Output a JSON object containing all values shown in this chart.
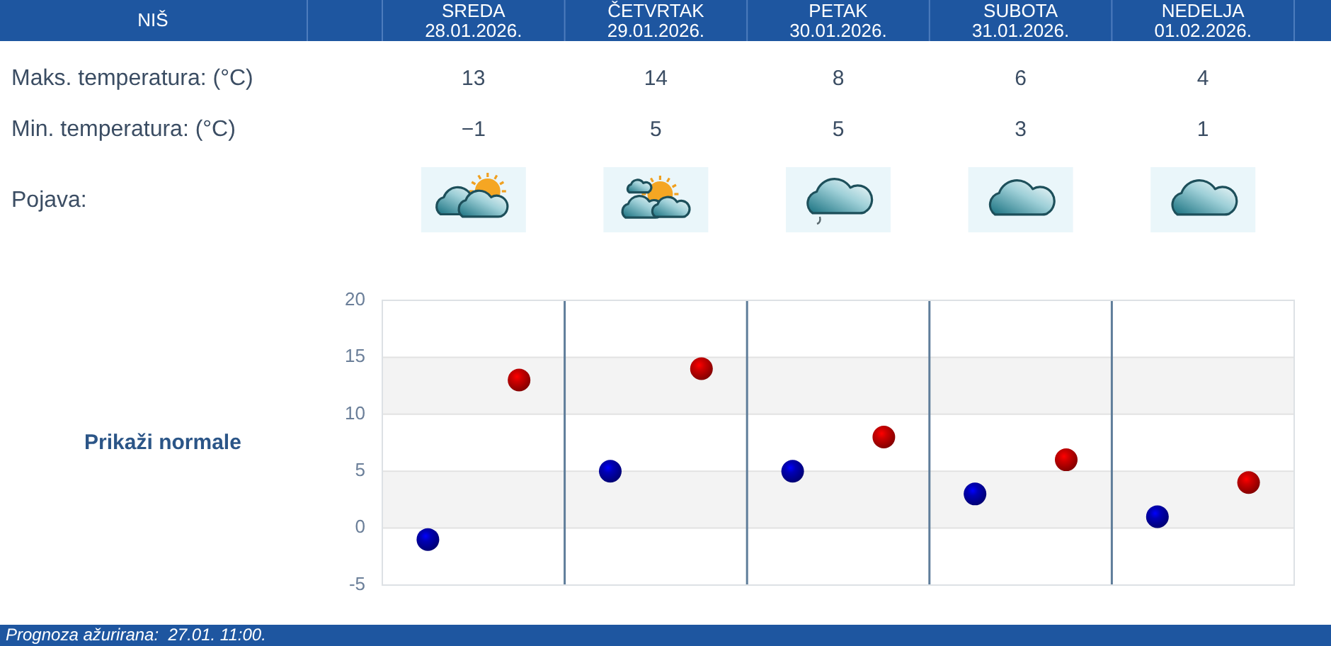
{
  "chart_data": {
    "type": "scatter",
    "title": "NIŠ",
    "categories": [
      null,
      null,
      null,
      null,
      null
    ],
    "series": [
      {
        "color": "#cc0000",
        "values": [
          13,
          14,
          8,
          6,
          4
        ]
      },
      {
        "color": "#0000b4",
        "values": [
          -1,
          5,
          5,
          3,
          1
        ]
      }
    ],
    "ylim": [
      -5,
      20
    ],
    "yticks": [
      -5,
      0,
      5,
      10,
      15,
      20
    ],
    "grid": true,
    "marker": "circle",
    "data_labels": true,
    "annotations": [
      "SREDA 28.01.2026.",
      "ČETVRTAK 29.01.2026.",
      "PETAK 30.01.2026.",
      "SUBOTA 31.01.2026.",
      "NEDELJA 01.02.2026.",
      "Maks. temperatura: (°C)",
      "Min. temperatura: (°C)",
      "Pojava:",
      "Prikaži normale",
      "Prognoza ažurirana:  27.01. 11:00."
    ]
  }
}
